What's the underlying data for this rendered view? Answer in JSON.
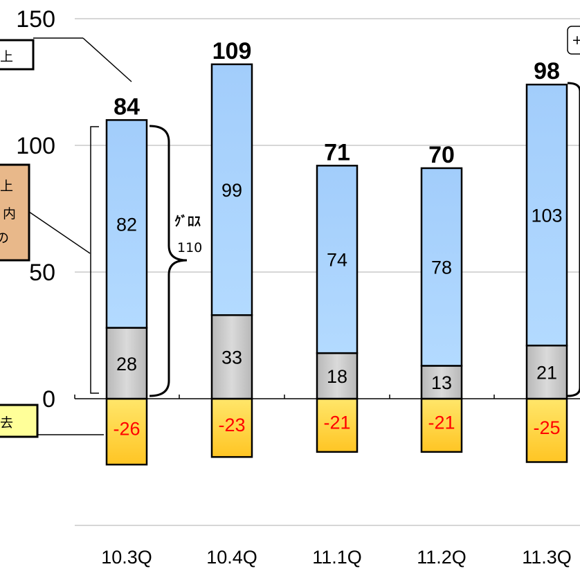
{
  "chart_data": {
    "type": "bar",
    "stacked": true,
    "categories": [
      "10.3Q",
      "10.4Q",
      "11.1Q",
      "11.2Q",
      "11.3Q"
    ],
    "series": [
      {
        "values": [
          28,
          33,
          18,
          13,
          21
        ],
        "color": "#c8c8c8"
      },
      {
        "values": [
          82,
          99,
          74,
          78,
          103
        ],
        "color": "#a7d2fb"
      },
      {
        "values": [
          -26,
          -23,
          -21,
          -21,
          -25
        ],
        "color": "#ffd24a"
      }
    ],
    "totals": [
      84,
      109,
      71,
      70,
      98
    ],
    "yticks": [
      0,
      50,
      100,
      150
    ],
    "ylim": [
      -50,
      150
    ],
    "grid": true,
    "annotations": {
      "gross_label_1": "ｸﾞﾛｽ",
      "gross_label_2": "110",
      "box_top_text": "上",
      "box_mid_line1": "上",
      "box_mid_line2": "内",
      "box_mid_line3": "の",
      "box_bottom_text": "去",
      "box_right_text": "+"
    },
    "colors": {
      "box_top_fill": "#ffffff",
      "box_mid_fill": "#e8b88a",
      "box_bottom_fill": "#ffff99"
    }
  }
}
